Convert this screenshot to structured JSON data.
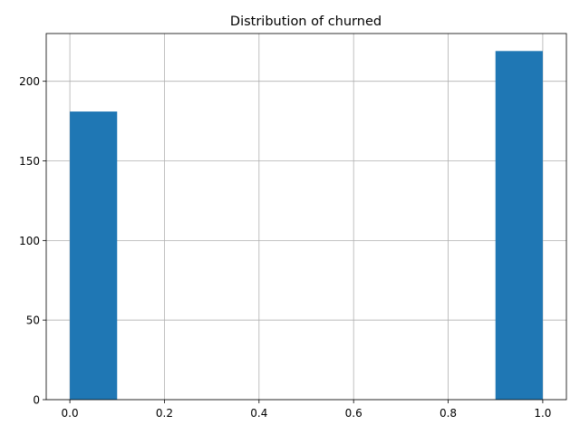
{
  "chart_data": {
    "type": "bar",
    "title": "Distribution of churned",
    "xlabel": "",
    "ylabel": "",
    "bins": [
      {
        "x0": 0.0,
        "x1": 0.1,
        "value": 181
      },
      {
        "x0": 0.1,
        "x1": 0.2,
        "value": 0
      },
      {
        "x0": 0.2,
        "x1": 0.3,
        "value": 0
      },
      {
        "x0": 0.3,
        "x1": 0.4,
        "value": 0
      },
      {
        "x0": 0.4,
        "x1": 0.5,
        "value": 0
      },
      {
        "x0": 0.5,
        "x1": 0.6,
        "value": 0
      },
      {
        "x0": 0.6,
        "x1": 0.7,
        "value": 0
      },
      {
        "x0": 0.7,
        "x1": 0.8,
        "value": 0
      },
      {
        "x0": 0.8,
        "x1": 0.9,
        "value": 0
      },
      {
        "x0": 0.9,
        "x1": 1.0,
        "value": 219
      }
    ],
    "xlim": [
      -0.05,
      1.05
    ],
    "ylim": [
      0,
      230
    ],
    "xticks": [
      0.0,
      0.2,
      0.4,
      0.6,
      0.8,
      1.0
    ],
    "xtick_labels": [
      "0.0",
      "0.2",
      "0.4",
      "0.6",
      "0.8",
      "1.0"
    ],
    "yticks": [
      0,
      50,
      100,
      150,
      200
    ],
    "ytick_labels": [
      "0",
      "50",
      "100",
      "150",
      "200"
    ],
    "grid": true,
    "bar_color": "#1f77b4"
  }
}
